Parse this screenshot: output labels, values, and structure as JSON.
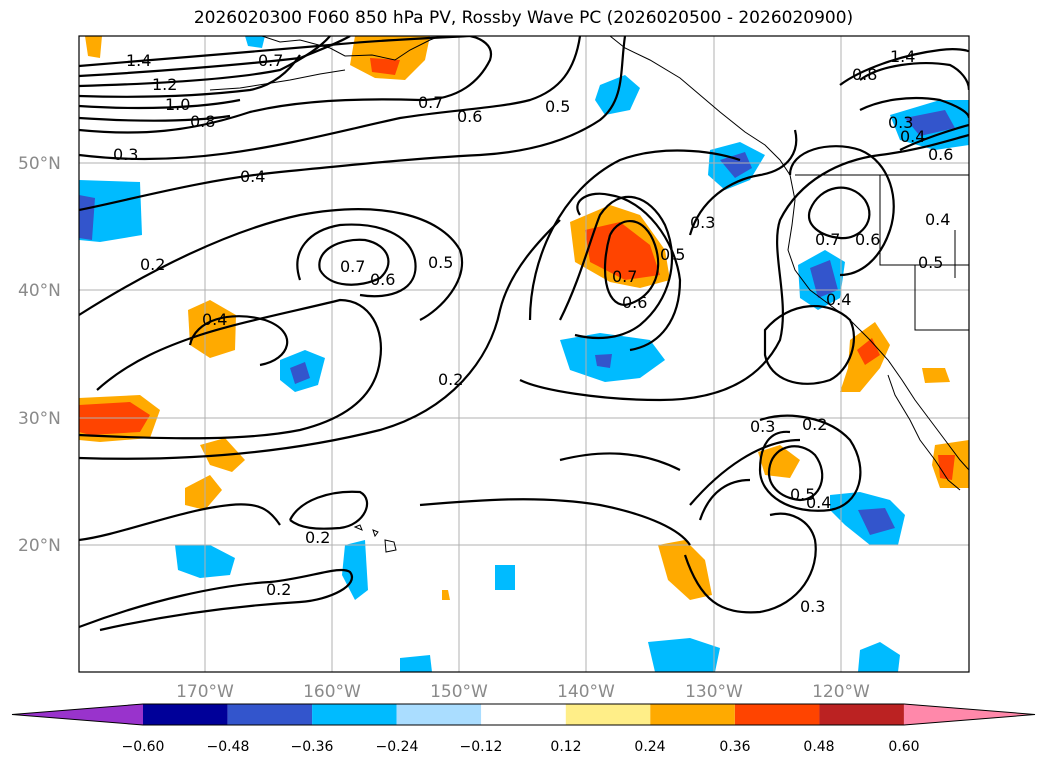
{
  "title": "2026020300 F060 850 hPa PV, Rossby Wave PC (2026020500 - 2026020900)",
  "lat_labels": [
    "50°N",
    "40°N",
    "30°N",
    "20°N"
  ],
  "lon_labels": [
    "170°W",
    "160°W",
    "150°W",
    "140°W",
    "130°W",
    "120°W"
  ],
  "colorbar": {
    "tick_labels": [
      "−0.60",
      "−0.48",
      "−0.36",
      "−0.24",
      "−0.12",
      "0.12",
      "0.24",
      "0.36",
      "0.48",
      "0.60"
    ],
    "colors": [
      "#9933cc",
      "#000099",
      "#3355cc",
      "#00bbff",
      "#aaddff",
      "#ffffff",
      "#ffee88",
      "#ffaa00",
      "#ff4400",
      "#bb2222",
      "#ff88aa"
    ]
  },
  "contour_labels": [
    "1.4",
    "1.2",
    "1.0",
    "0.8",
    "0.3",
    "0.4",
    "0.7",
    "0.7",
    "0.6",
    "0.5",
    "1.4",
    "0.8",
    "0.3",
    "0.4",
    "0.6",
    "0.7",
    "0.6",
    "0.5",
    "0.7",
    "0.6",
    "0.3",
    "0.7",
    "0.6",
    "0.4",
    "0.5",
    "0.4",
    "0.2",
    "0.4",
    "0.2",
    "0.3",
    "0.2",
    "0.5",
    "0.4",
    "0.2",
    "0.2",
    "0.3",
    "0.5"
  ]
}
